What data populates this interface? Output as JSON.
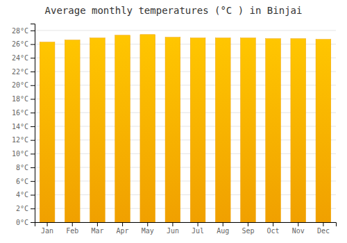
{
  "chart_data": {
    "type": "bar",
    "title": "Average monthly temperatures (°C ) in Binjai",
    "categories": [
      "Jan",
      "Feb",
      "Mar",
      "Apr",
      "May",
      "Jun",
      "Jul",
      "Aug",
      "Sep",
      "Oct",
      "Nov",
      "Dec"
    ],
    "values": [
      26.3,
      26.6,
      26.9,
      27.3,
      27.4,
      27.0,
      26.9,
      26.9,
      26.9,
      26.8,
      26.8,
      26.7
    ],
    "color": "#F0A000",
    "ylim": [
      0,
      29
    ],
    "yticks": [
      {
        "value": 0,
        "label": "0°C"
      },
      {
        "value": 2,
        "label": "2°C"
      },
      {
        "value": 4,
        "label": "4°C"
      },
      {
        "value": 6,
        "label": "6°C"
      },
      {
        "value": 8,
        "label": "8°C"
      },
      {
        "value": 10,
        "label": "10°C"
      },
      {
        "value": 12,
        "label": "12°C"
      },
      {
        "value": 14,
        "label": "14°C"
      },
      {
        "value": 16,
        "label": "16°C"
      },
      {
        "value": 18,
        "label": "18°C"
      },
      {
        "value": 20,
        "label": "20°C"
      },
      {
        "value": 22,
        "label": "22°C"
      },
      {
        "value": 24,
        "label": "24°C"
      },
      {
        "value": 26,
        "label": "26°C"
      },
      {
        "value": 28,
        "label": "28°C"
      }
    ],
    "grid": true
  }
}
